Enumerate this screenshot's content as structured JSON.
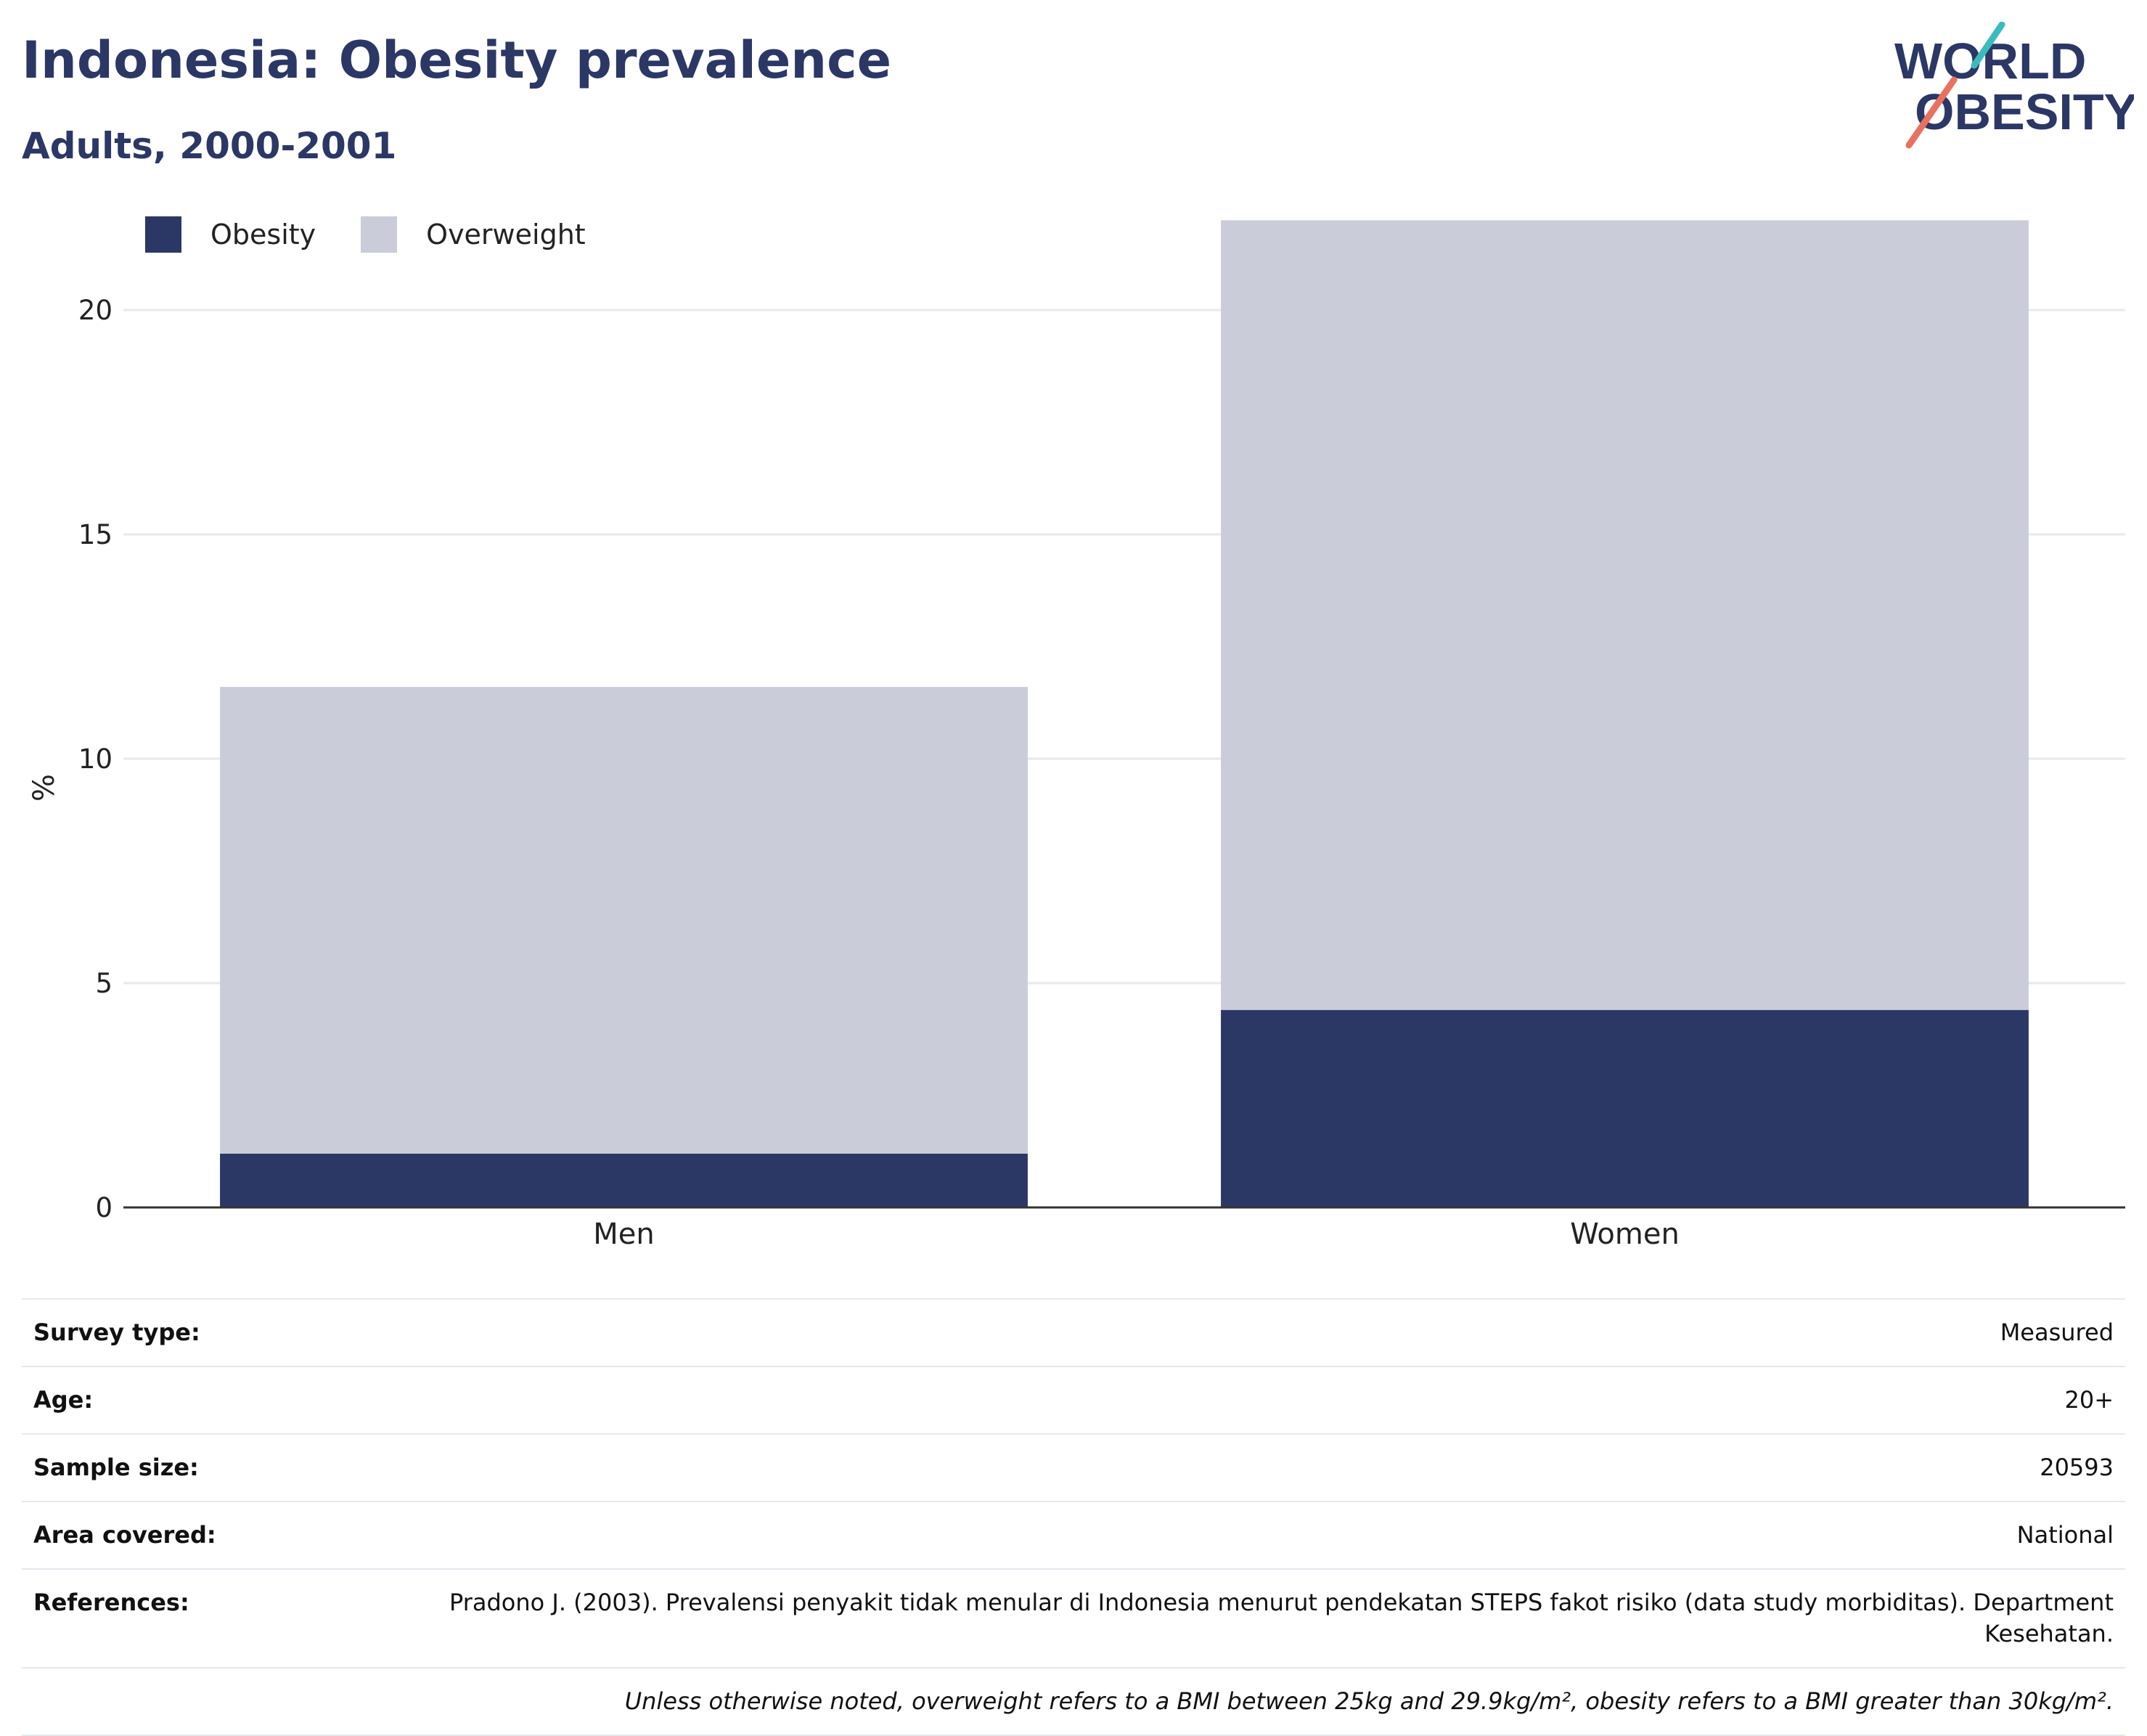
{
  "title": "Indonesia: Obesity prevalence",
  "subtitle": "Adults, 2000-2001",
  "logo": {
    "line1": "WORLD",
    "line2": "OBESITY",
    "accent1": "#3bbcbc",
    "accent2": "#e8725f",
    "text_color": "#2b3765"
  },
  "colors": {
    "obesity": "#2b3765",
    "overweight": "#cacdd9",
    "grid": "#e6e9ef",
    "axis": "#333333"
  },
  "chart_data": {
    "type": "bar",
    "stacked": true,
    "categories": [
      "Men",
      "Women"
    ],
    "series": [
      {
        "name": "Obesity",
        "values": [
          1.2,
          4.4
        ]
      },
      {
        "name": "Overweight",
        "values": [
          10.4,
          17.6
        ]
      }
    ],
    "ylabel": "%",
    "ylim": [
      0,
      23.5
    ],
    "yticks": [
      0,
      5,
      10,
      15,
      20
    ],
    "grid": true,
    "legend": "top-left"
  },
  "meta": {
    "survey_type": {
      "label": "Survey type:",
      "value": "Measured"
    },
    "age": {
      "label": "Age:",
      "value": "20+"
    },
    "sample_size": {
      "label": "Sample size:",
      "value": "20593"
    },
    "area": {
      "label": "Area covered:",
      "value": "National"
    },
    "references": {
      "label": "References:",
      "value": "Pradono J. (2003). Prevalensi penyakit tidak menular di Indonesia menurut pendekatan STEPS fakot risiko (data study morbiditas). Department Kesehatan."
    },
    "note": "Unless otherwise noted, overweight refers to a BMI between 25kg and 29.9kg/m², obesity refers to a BMI greater than 30kg/m²."
  }
}
